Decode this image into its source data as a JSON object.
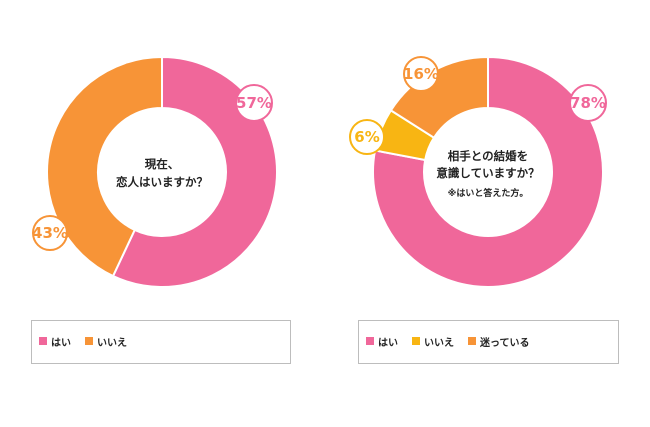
{
  "chart_data": [
    {
      "type": "pie",
      "center_label_lines": [
        "現在、",
        "恋人はいますか？"
      ],
      "note": "",
      "series": [
        {
          "name": "はい",
          "value": 57,
          "label": "57%",
          "color": "#f0679a"
        },
        {
          "name": "いいえ",
          "value": 43,
          "label": "43%",
          "color": "#f79437"
        }
      ],
      "legend": [
        {
          "label": "はい",
          "color": "#f0679a"
        },
        {
          "label": "いいえ",
          "color": "#f79437"
        }
      ]
    },
    {
      "type": "pie",
      "center_label_lines": [
        "相手との結婚を",
        "意識していますか？"
      ],
      "note": "※はいと答えた方。",
      "series": [
        {
          "name": "はい",
          "value": 78,
          "label": "78%",
          "color": "#f0679a"
        },
        {
          "name": "いいえ",
          "value": 6,
          "label": "6%",
          "color": "#f8b513"
        },
        {
          "name": "迷っている",
          "value": 16,
          "label": "16%",
          "color": "#f79437"
        }
      ],
      "legend": [
        {
          "label": "はい",
          "color": "#f0679a"
        },
        {
          "label": "いいえ",
          "color": "#f8b513"
        },
        {
          "label": "迷っている",
          "color": "#f79437"
        }
      ]
    }
  ]
}
